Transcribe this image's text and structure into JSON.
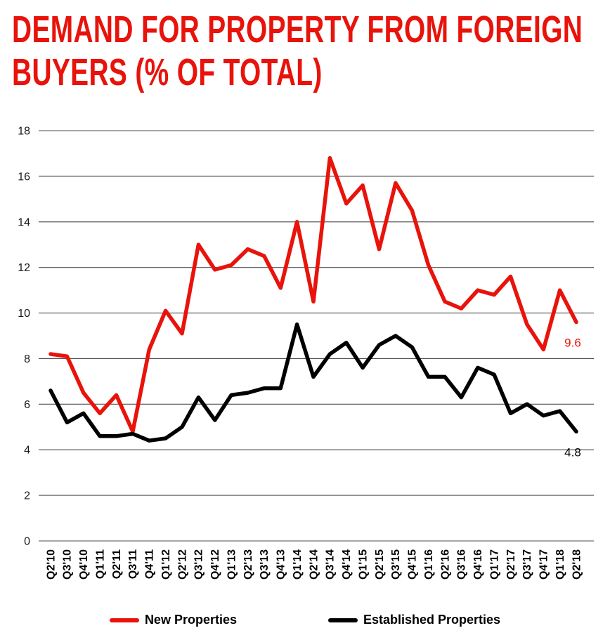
{
  "title": {
    "line1": "DEMAND FOR PROPERTY FROM FOREIGN",
    "line2": "BUYERS (% OF TOTAL)"
  },
  "legend": [
    {
      "label": "New Properties",
      "color": "#e8130b"
    },
    {
      "label": "Established Properties",
      "color": "#000000"
    }
  ],
  "chart_data": {
    "type": "line",
    "title": "DEMAND FOR PROPERTY FROM FOREIGN BUYERS (% OF TOTAL)",
    "xlabel": "",
    "ylabel": "",
    "ylim": [
      0,
      18
    ],
    "ytick_step": 2,
    "grid": true,
    "legend_position": "bottom",
    "categories": [
      "Q2'10",
      "Q3'10",
      "Q4'10",
      "Q1'11",
      "Q2'11",
      "Q3'11",
      "Q4'11",
      "Q1'12",
      "Q2'12",
      "Q3'12",
      "Q4'12",
      "Q1'13",
      "Q2'13",
      "Q3'13",
      "Q4'13",
      "Q1'14",
      "Q2'14",
      "Q3'14",
      "Q4'14",
      "Q1'15",
      "Q2'15",
      "Q3'15",
      "Q4'15",
      "Q1'16",
      "Q2'16",
      "Q3'16",
      "Q4'16",
      "Q1'17",
      "Q2'17",
      "Q3'17",
      "Q4'17",
      "Q1'18",
      "Q2'18"
    ],
    "series": [
      {
        "name": "New Properties",
        "color": "#e8130b",
        "end_label": "9.6",
        "values": [
          8.2,
          8.1,
          6.5,
          5.6,
          6.4,
          4.8,
          8.4,
          10.1,
          9.1,
          13.0,
          11.9,
          12.1,
          12.8,
          12.5,
          11.1,
          14.0,
          10.5,
          16.8,
          14.8,
          15.6,
          12.8,
          15.7,
          14.5,
          12.1,
          10.5,
          10.2,
          11.0,
          10.8,
          11.6,
          9.5,
          8.4,
          11.0,
          9.6
        ]
      },
      {
        "name": "Established Properties",
        "color": "#000000",
        "end_label": "4.8",
        "values": [
          6.6,
          5.2,
          5.6,
          4.6,
          4.6,
          4.7,
          4.4,
          4.5,
          5.0,
          6.3,
          5.3,
          6.4,
          6.5,
          6.7,
          6.7,
          9.5,
          7.2,
          8.2,
          8.7,
          7.6,
          8.6,
          9.0,
          8.5,
          7.2,
          7.2,
          6.3,
          7.6,
          7.3,
          5.6,
          6.0,
          5.5,
          5.7,
          4.8
        ]
      }
    ]
  }
}
